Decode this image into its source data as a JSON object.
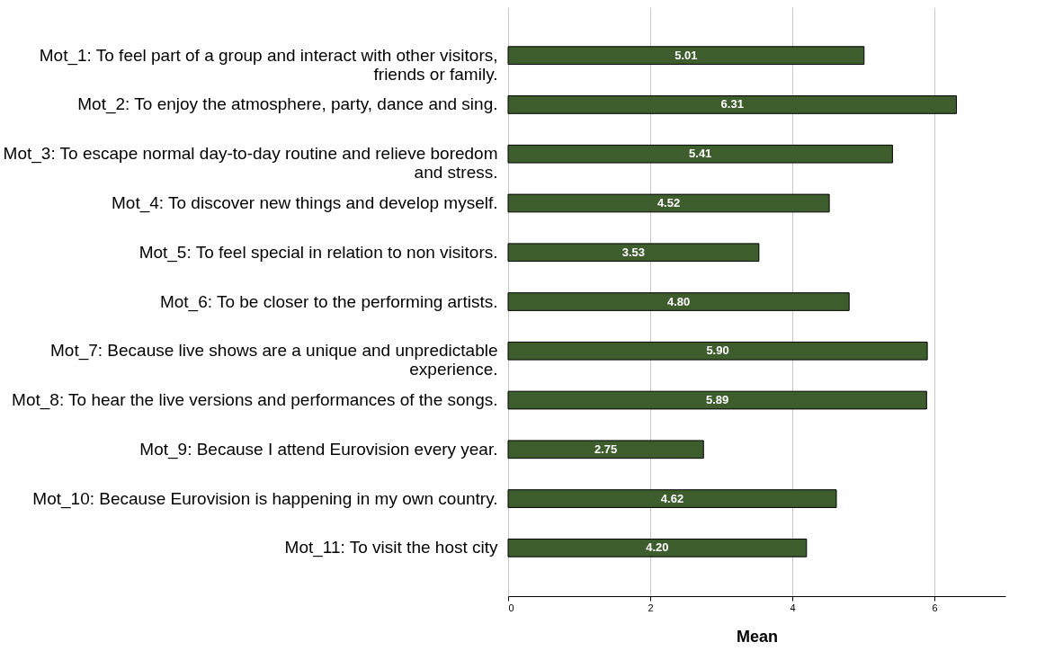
{
  "chart_data": {
    "type": "bar",
    "orientation": "horizontal",
    "xlabel": "Mean",
    "categories": [
      "Mot_1: To feel part of a group and interact with other visitors, friends or family.",
      "Mot_2: To enjoy the atmosphere, party, dance and sing.",
      "Mot_3: To escape normal day-to-day routine and relieve boredom and stress.",
      "Mot_4: To discover new things and develop myself.",
      "Mot_5: To feel special in relation to non visitors.",
      "Mot_6: To be closer to the performing artists.",
      "Mot_7: Because live shows are a unique and unpredictable experience.",
      "Mot_8: To hear the live versions and performances of the songs.",
      "Mot_9: Because I attend Eurovision every year.",
      "Mot_10: Because Eurovision is happening in my own country.",
      "Mot_11: To visit the host city"
    ],
    "values": [
      5.01,
      6.31,
      5.41,
      4.52,
      3.53,
      4.8,
      5.9,
      5.89,
      2.75,
      4.62,
      4.2
    ],
    "value_labels": [
      "5.01",
      "6.31",
      "5.41",
      "4.52",
      "3.53",
      "4.80",
      "5.90",
      "5.89",
      "2.75",
      "4.62",
      "4.20"
    ],
    "color": "#3d5e2c",
    "xlim": [
      0,
      7
    ],
    "xticks": [
      0,
      2,
      4,
      6
    ],
    "grid": "x"
  }
}
